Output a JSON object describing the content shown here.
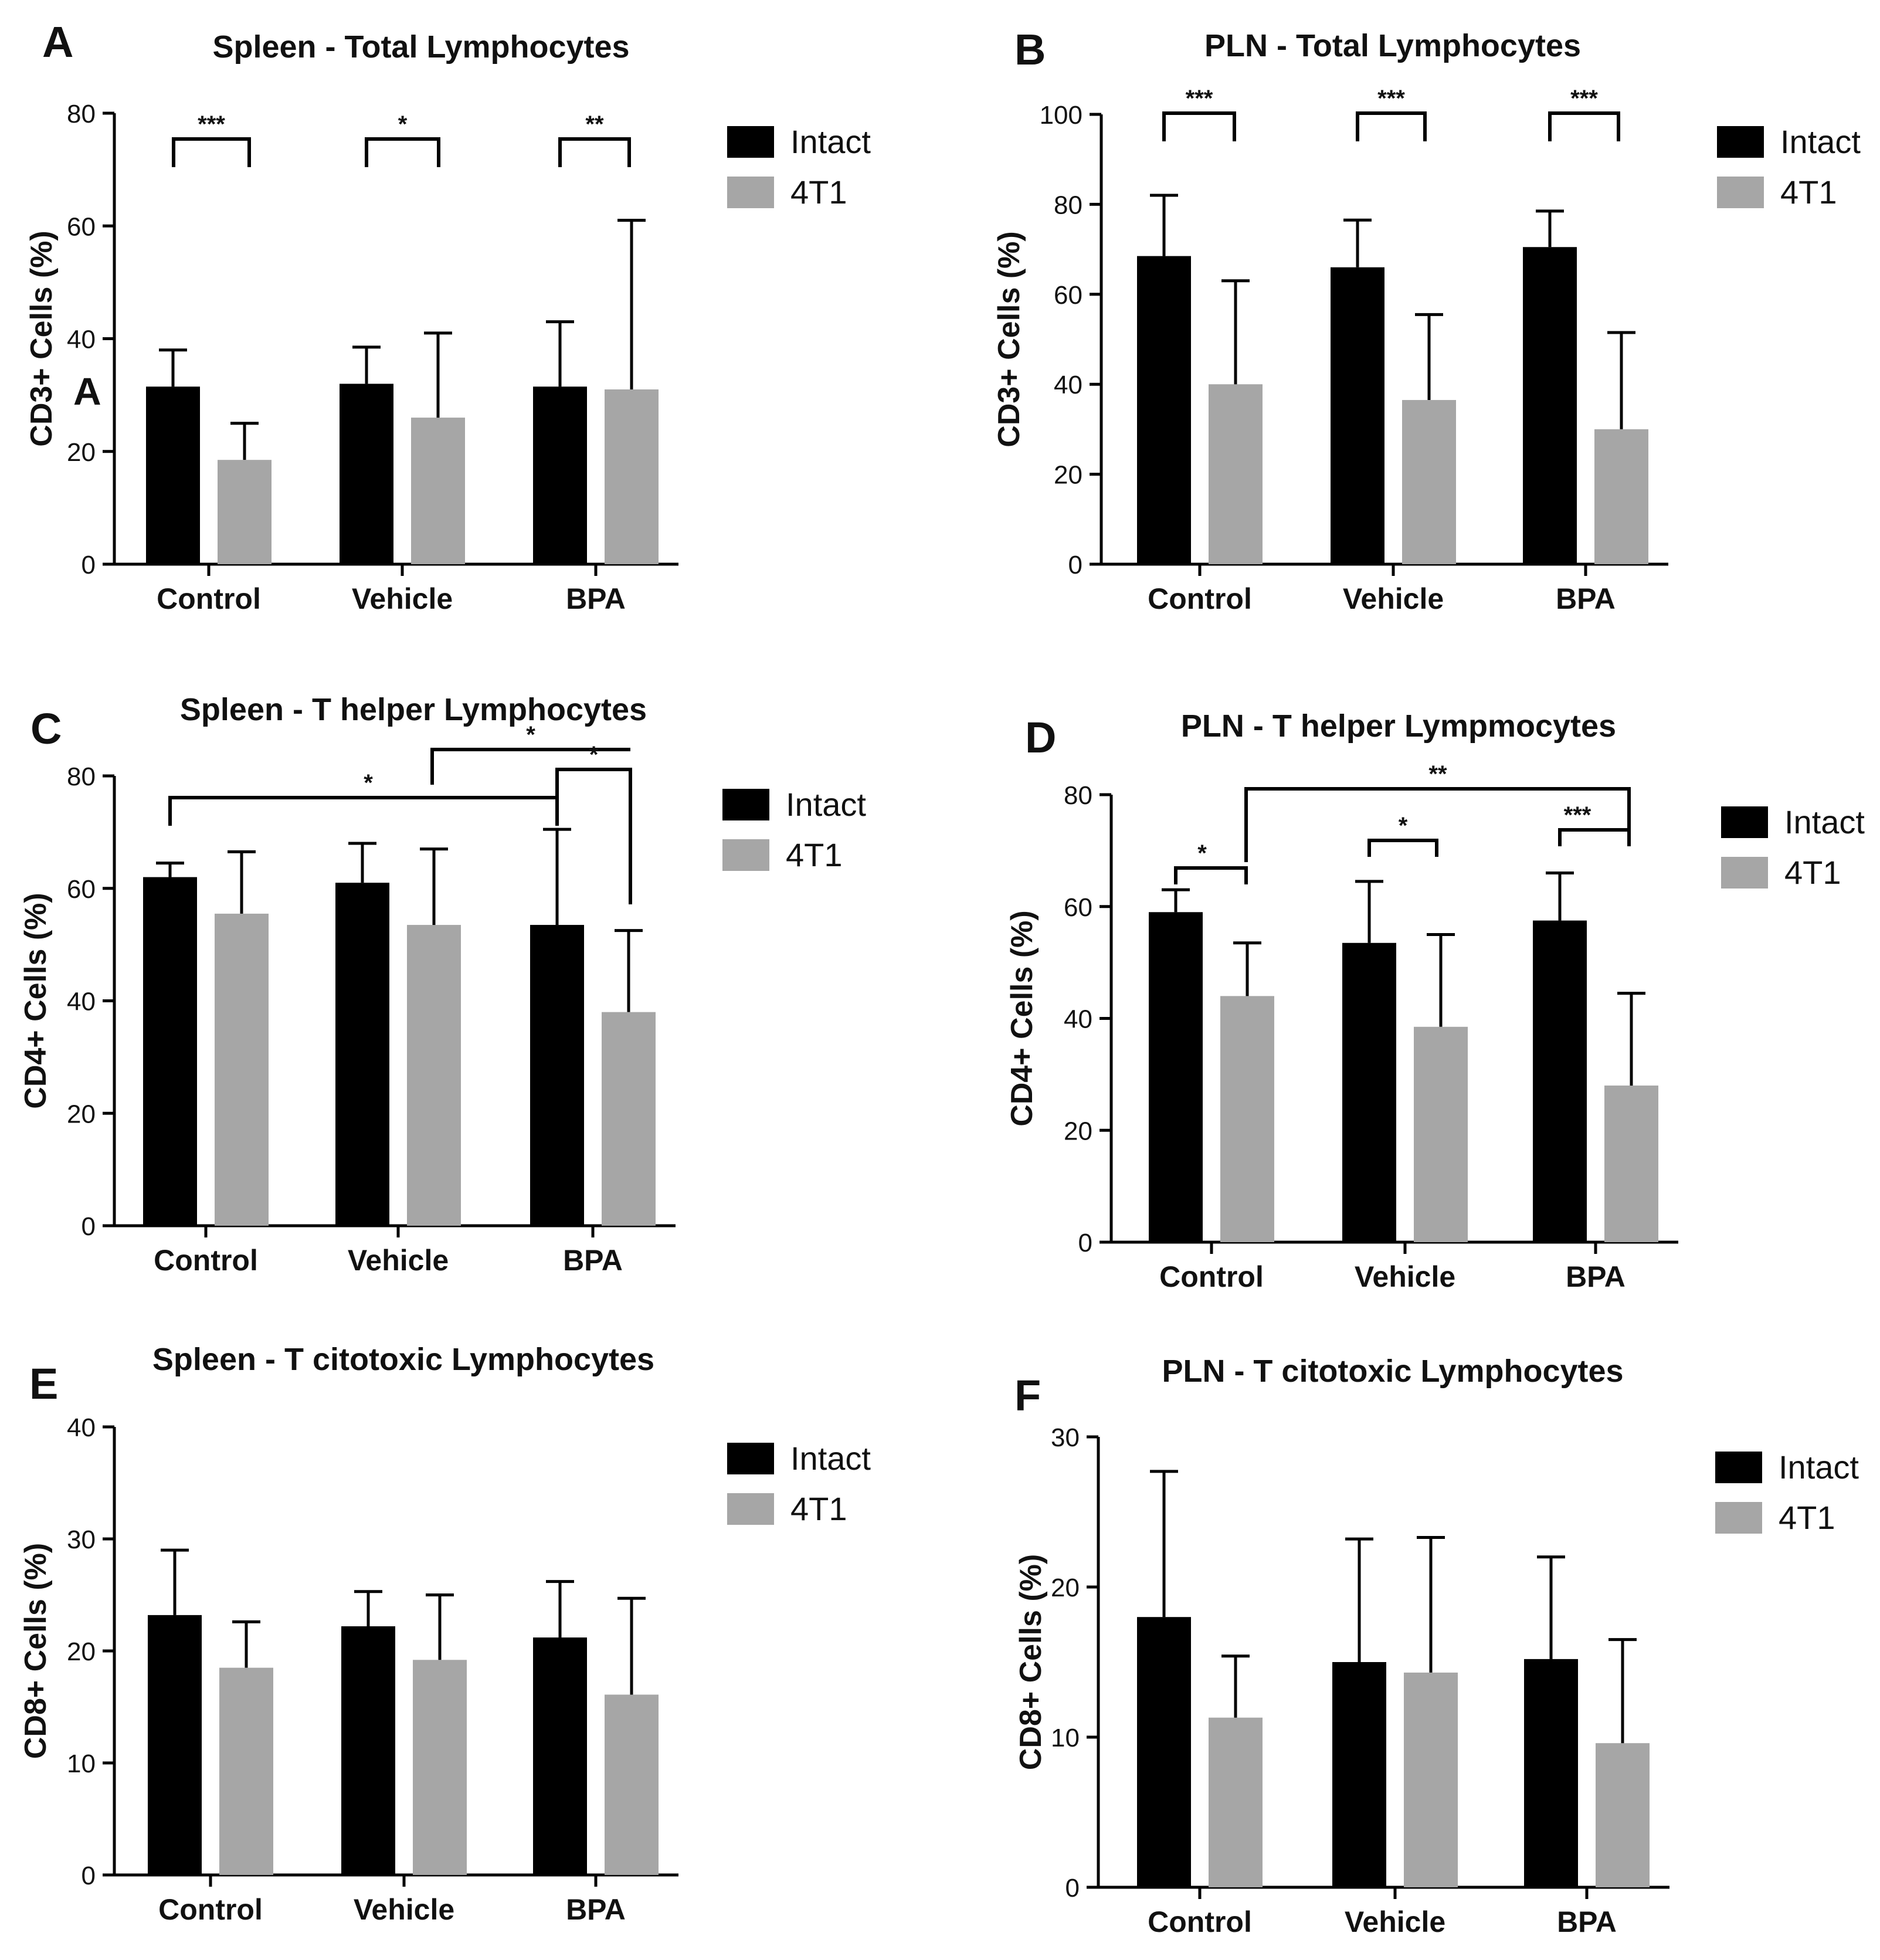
{
  "colors": {
    "intact": "#000000",
    "t4t1": "#a6a6a6",
    "axis": "#000000"
  },
  "legend": {
    "intact": "Intact",
    "t4t1": "4T1"
  },
  "stray_label": "A",
  "chart_data": [
    {
      "type": "bar",
      "panel": "A",
      "title": "Spleen - Total Lymphocytes",
      "ylabel": "CD3+ Cells (%)",
      "ylim": [
        0,
        80
      ],
      "yticks": [
        0,
        20,
        40,
        60,
        80
      ],
      "categories": [
        "Control",
        "Vehicle",
        "BPA"
      ],
      "series": [
        {
          "name": "Intact",
          "values": [
            31.5,
            32,
            31.5
          ],
          "errors": [
            6.5,
            6.5,
            11.5
          ]
        },
        {
          "name": "4T1",
          "values": [
            18.5,
            26,
            31
          ],
          "errors": [
            6.5,
            15,
            30
          ]
        }
      ],
      "significance": [
        {
          "from": [
            0,
            0
          ],
          "to": [
            0,
            1
          ],
          "label": "***"
        },
        {
          "from": [
            1,
            0
          ],
          "to": [
            1,
            1
          ],
          "label": "*"
        },
        {
          "from": [
            2,
            0
          ],
          "to": [
            2,
            1
          ],
          "label": "**"
        }
      ]
    },
    {
      "type": "bar",
      "panel": "B",
      "title": "PLN - Total Lymphocytes",
      "ylabel": "CD3+ Cells (%)",
      "ylim": [
        0,
        100
      ],
      "yticks": [
        0,
        20,
        40,
        60,
        80,
        100
      ],
      "categories": [
        "Control",
        "Vehicle",
        "BPA"
      ],
      "series": [
        {
          "name": "Intact",
          "values": [
            68.5,
            66,
            70.5
          ],
          "errors": [
            13.5,
            10.5,
            8
          ]
        },
        {
          "name": "4T1",
          "values": [
            40,
            36.5,
            30
          ],
          "errors": [
            23,
            19,
            21.5
          ]
        }
      ],
      "significance": [
        {
          "from": [
            0,
            0
          ],
          "to": [
            0,
            1
          ],
          "label": "***"
        },
        {
          "from": [
            1,
            0
          ],
          "to": [
            1,
            1
          ],
          "label": "***"
        },
        {
          "from": [
            2,
            0
          ],
          "to": [
            2,
            1
          ],
          "label": "***"
        }
      ]
    },
    {
      "type": "bar",
      "panel": "C",
      "title": "Spleen - T helper Lymphocytes",
      "ylabel": "CD4+ Cells (%)",
      "ylim": [
        0,
        80
      ],
      "yticks": [
        0,
        20,
        40,
        60,
        80
      ],
      "categories": [
        "Control",
        "Vehicle",
        "BPA"
      ],
      "series": [
        {
          "name": "Intact",
          "values": [
            62,
            61,
            53.5
          ],
          "errors": [
            2.5,
            7,
            17
          ]
        },
        {
          "name": "4T1",
          "values": [
            55.5,
            53.5,
            38
          ],
          "errors": [
            11,
            13.5,
            14.5
          ]
        }
      ],
      "significance": [
        {
          "from": [
            0,
            0
          ],
          "to": [
            2,
            0
          ],
          "label": "*"
        },
        {
          "from": [
            1,
            1
          ],
          "to": [
            2,
            1
          ],
          "label": "*"
        },
        {
          "from": [
            2,
            0
          ],
          "to": [
            2,
            1
          ],
          "label": "*"
        }
      ]
    },
    {
      "type": "bar",
      "panel": "D",
      "title": "PLN - T helper Lympmocytes",
      "ylabel": "CD4+ Cells (%)",
      "ylim": [
        0,
        80
      ],
      "yticks": [
        0,
        20,
        40,
        60,
        80
      ],
      "categories": [
        "Control",
        "Vehicle",
        "BPA"
      ],
      "series": [
        {
          "name": "Intact",
          "values": [
            59,
            53.5,
            57.5
          ],
          "errors": [
            4,
            11,
            8.5
          ]
        },
        {
          "name": "4T1",
          "values": [
            44,
            38.5,
            28
          ],
          "errors": [
            9.5,
            16.5,
            16.5
          ]
        }
      ],
      "significance": [
        {
          "from": [
            0,
            0
          ],
          "to": [
            0,
            1
          ],
          "label": "*"
        },
        {
          "from": [
            0,
            1
          ],
          "to": [
            2,
            1
          ],
          "label": "**"
        },
        {
          "from": [
            1,
            0
          ],
          "to": [
            1,
            1
          ],
          "label": "*"
        },
        {
          "from": [
            2,
            0
          ],
          "to": [
            2,
            1
          ],
          "label": "***"
        }
      ]
    },
    {
      "type": "bar",
      "panel": "E",
      "title": "Spleen - T citotoxic Lymphocytes",
      "ylabel": "CD8+ Cells (%)",
      "ylim": [
        0,
        40
      ],
      "yticks": [
        0,
        10,
        20,
        30,
        40
      ],
      "categories": [
        "Control",
        "Vehicle",
        "BPA"
      ],
      "series": [
        {
          "name": "Intact",
          "values": [
            23.2,
            22.2,
            21.2
          ],
          "errors": [
            5.8,
            3.1,
            5
          ]
        },
        {
          "name": "4T1",
          "values": [
            18.5,
            19.2,
            16.1
          ],
          "errors": [
            4.1,
            5.8,
            8.6
          ]
        }
      ],
      "significance": []
    },
    {
      "type": "bar",
      "panel": "F",
      "title": "PLN - T citotoxic Lymphocytes",
      "ylabel": "CD8+ Cells (%)",
      "ylim": [
        0,
        30
      ],
      "yticks": [
        0,
        10,
        20,
        30
      ],
      "categories": [
        "Control",
        "Vehicle",
        "BPA"
      ],
      "series": [
        {
          "name": "Intact",
          "values": [
            18,
            15,
            15.2
          ],
          "errors": [
            9.7,
            8.2,
            6.8
          ]
        },
        {
          "name": "4T1",
          "values": [
            11.3,
            14.3,
            9.6
          ],
          "errors": [
            4.1,
            9,
            6.9
          ]
        }
      ],
      "significance": []
    }
  ]
}
